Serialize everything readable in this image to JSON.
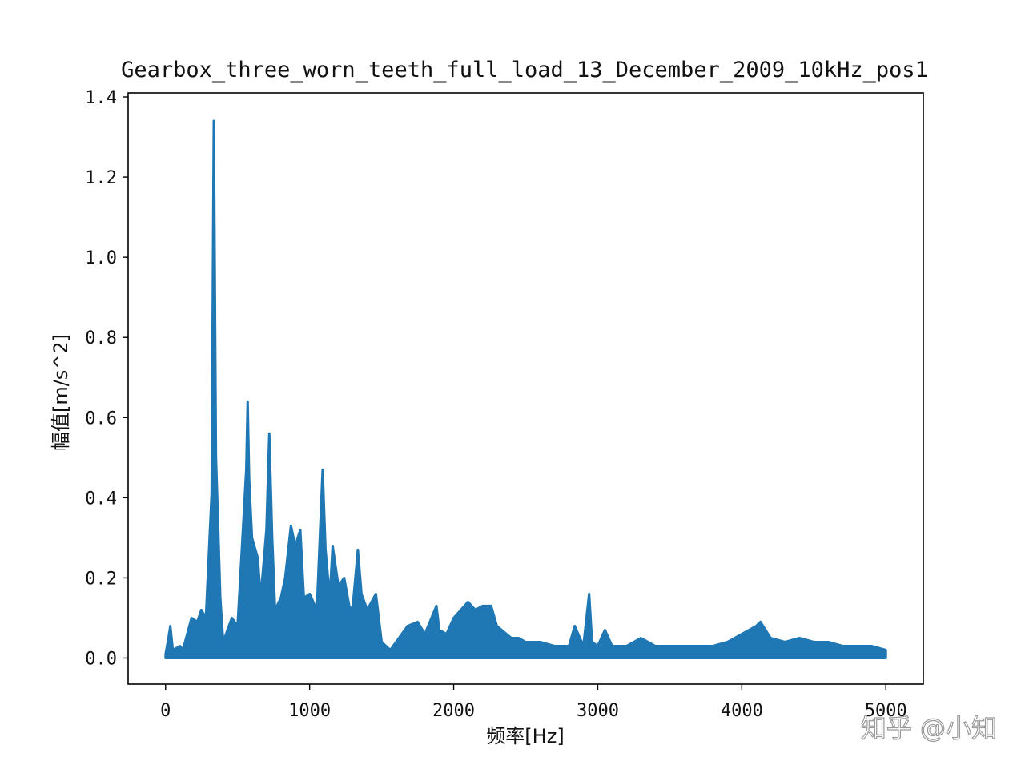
{
  "chart_data": {
    "type": "line",
    "title": "Gearbox_three_worn_teeth_full_load_13_December_2009_10kHz_pos1",
    "xlabel": "频率[Hz]",
    "ylabel": "幅值[m/s^2]",
    "xlim": [
      -260,
      5260
    ],
    "ylim": [
      -0.065,
      1.41
    ],
    "x_ticks": [
      0,
      1000,
      2000,
      3000,
      4000,
      5000
    ],
    "x_tick_labels": [
      "0",
      "1000",
      "2000",
      "3000",
      "4000",
      "5000"
    ],
    "y_ticks": [
      0.0,
      0.2,
      0.4,
      0.6,
      0.8,
      1.0,
      1.2,
      1.4
    ],
    "y_tick_labels": [
      "0.0",
      "0.2",
      "0.4",
      "0.6",
      "0.8",
      "1.0",
      "1.2",
      "1.4"
    ],
    "grid": false,
    "series": [
      {
        "color": "#1f77b4",
        "x": [
          0,
          20,
          33,
          50,
          100,
          120,
          180,
          220,
          248,
          280,
          320,
          335,
          350,
          365,
          380,
          400,
          460,
          500,
          560,
          570,
          580,
          600,
          640,
          660,
          700,
          720,
          740,
          760,
          800,
          830,
          870,
          900,
          935,
          960,
          1000,
          1050,
          1090,
          1110,
          1140,
          1160,
          1200,
          1240,
          1280,
          1300,
          1335,
          1360,
          1400,
          1460,
          1500,
          1560,
          1600,
          1680,
          1750,
          1800,
          1880,
          1900,
          1950,
          2000,
          2100,
          2150,
          2200,
          2260,
          2300,
          2400,
          2450,
          2500,
          2600,
          2700,
          2800,
          2840,
          2900,
          2940,
          2960,
          3000,
          3050,
          3100,
          3200,
          3300,
          3400,
          3500,
          3600,
          3700,
          3800,
          3900,
          4000,
          4100,
          4130,
          4200,
          4300,
          4400,
          4500,
          4600,
          4700,
          4800,
          4900,
          5000
        ],
        "y": [
          0.01,
          0.05,
          0.08,
          0.02,
          0.03,
          0.02,
          0.1,
          0.09,
          0.12,
          0.1,
          0.41,
          1.34,
          0.5,
          0.33,
          0.15,
          0.04,
          0.1,
          0.08,
          0.47,
          0.64,
          0.45,
          0.3,
          0.25,
          0.15,
          0.32,
          0.56,
          0.3,
          0.12,
          0.15,
          0.2,
          0.33,
          0.28,
          0.32,
          0.15,
          0.16,
          0.12,
          0.47,
          0.27,
          0.15,
          0.28,
          0.18,
          0.2,
          0.12,
          0.13,
          0.27,
          0.16,
          0.12,
          0.16,
          0.04,
          0.02,
          0.04,
          0.08,
          0.09,
          0.06,
          0.13,
          0.07,
          0.06,
          0.1,
          0.14,
          0.12,
          0.13,
          0.13,
          0.08,
          0.05,
          0.05,
          0.04,
          0.04,
          0.03,
          0.03,
          0.08,
          0.03,
          0.16,
          0.04,
          0.03,
          0.07,
          0.03,
          0.03,
          0.05,
          0.03,
          0.03,
          0.03,
          0.03,
          0.03,
          0.04,
          0.06,
          0.08,
          0.09,
          0.05,
          0.04,
          0.05,
          0.04,
          0.04,
          0.03,
          0.03,
          0.03,
          0.02
        ]
      }
    ]
  },
  "watermark": "知乎 @小知",
  "colors": {
    "line": "#1f77b4",
    "axes": "#000000",
    "background": "#ffffff"
  }
}
